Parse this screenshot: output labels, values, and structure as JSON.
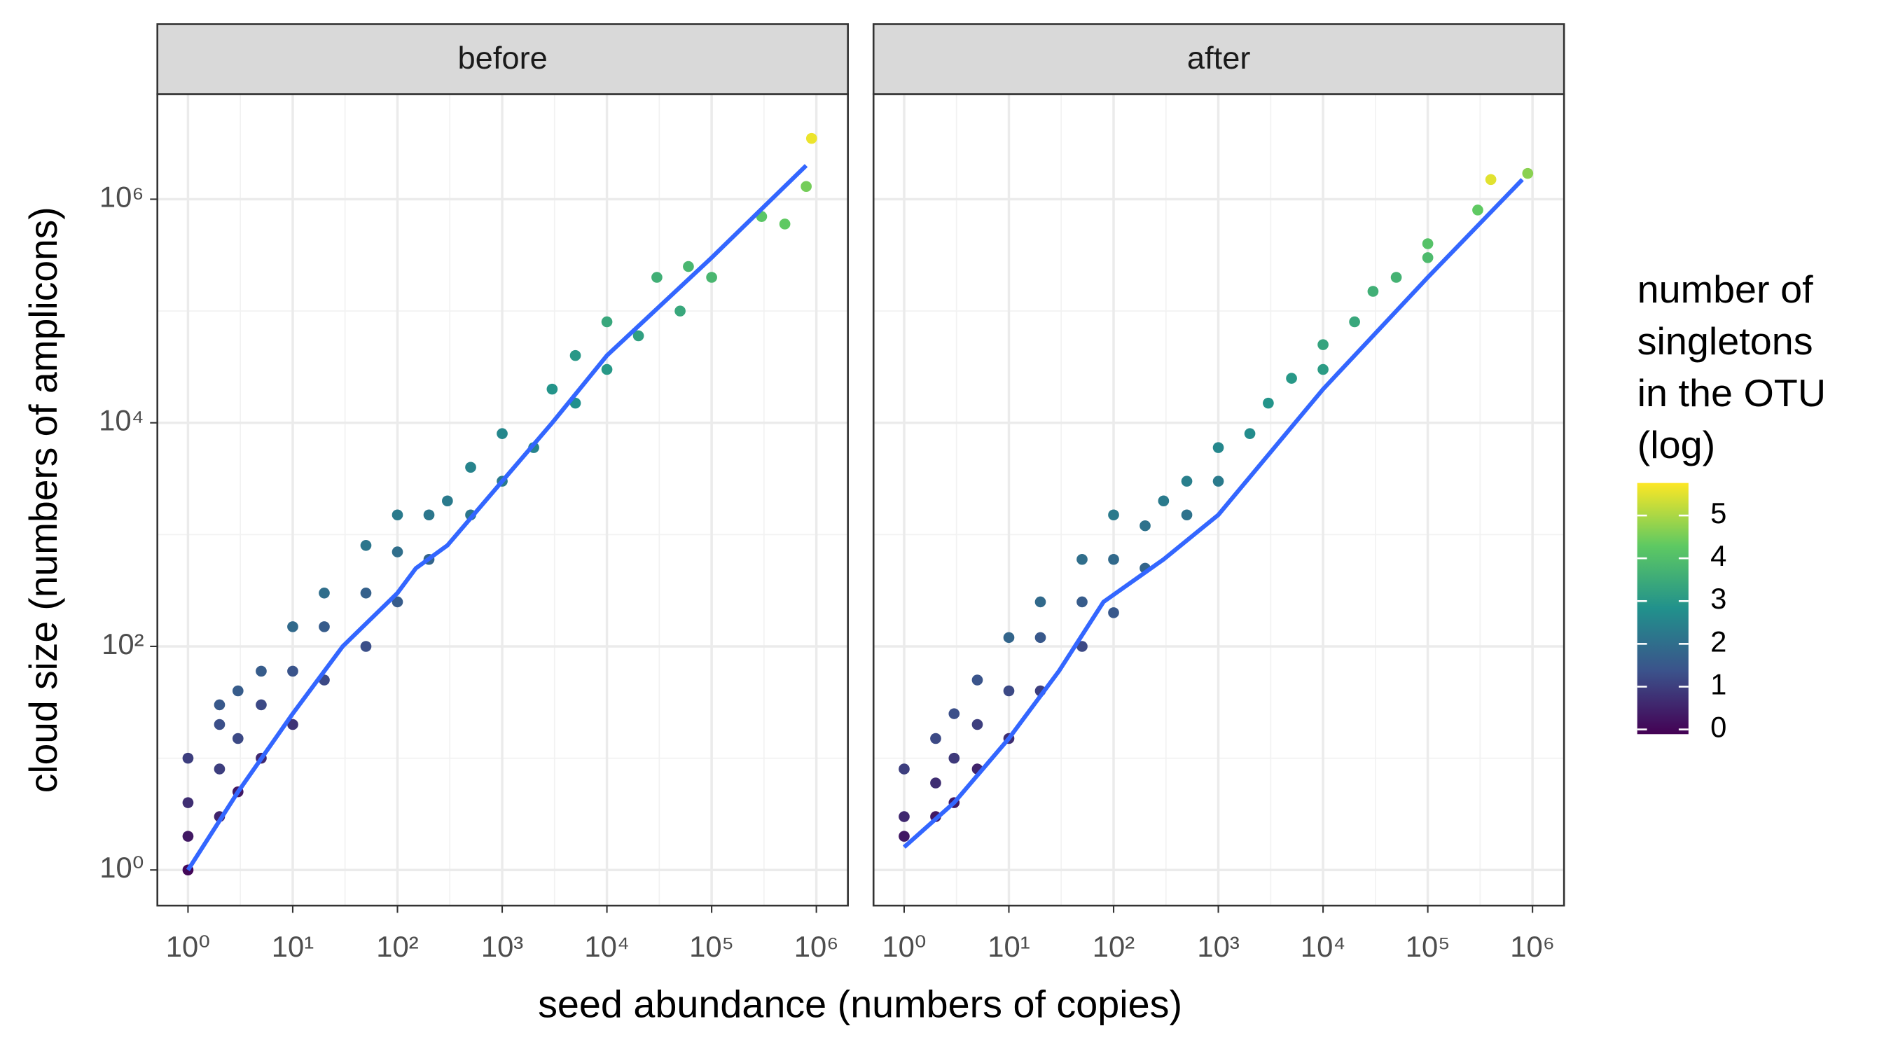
{
  "chart_data": [
    {
      "type": "scatter",
      "title": "before",
      "x": [
        1,
        1,
        1,
        1,
        2,
        2,
        2,
        2,
        3,
        3,
        3,
        5,
        5,
        5,
        10,
        10,
        10,
        20,
        20,
        20,
        50,
        50,
        50,
        100,
        100,
        100,
        200,
        200,
        300,
        500,
        500,
        1000,
        1000,
        2000,
        3000,
        5000,
        5000,
        10000,
        10000,
        20000,
        30000,
        50000,
        60000,
        100000,
        300000,
        500000,
        800000,
        900000
      ],
      "y": [
        1,
        2,
        4,
        10,
        3,
        8,
        20,
        30,
        5,
        15,
        40,
        10,
        30,
        60,
        20,
        60,
        150,
        50,
        150,
        300,
        100,
        300,
        800,
        250,
        700,
        1500,
        600,
        1500,
        2000,
        1500,
        4000,
        3000,
        8000,
        6000,
        20000,
        15000,
        40000,
        30000,
        80000,
        60000,
        200000,
        100000,
        250000,
        200000,
        700000,
        600000,
        1300000,
        3500000
      ],
      "color_values": [
        0,
        0.3,
        0.7,
        1,
        0.5,
        1,
        1.3,
        1.5,
        0.3,
        1.2,
        1.6,
        0.6,
        1.2,
        1.6,
        0.8,
        1.4,
        1.9,
        1.2,
        1.6,
        2,
        1.3,
        1.7,
        2.2,
        1.6,
        2,
        2.3,
        1.8,
        2.2,
        2.3,
        2.2,
        2.5,
        2.3,
        2.6,
        2.5,
        2.9,
        2.8,
        3,
        3,
        3.4,
        3.2,
        3.6,
        3.4,
        3.8,
        3.8,
        4.2,
        4.3,
        4.5,
        5.6
      ],
      "fit": {
        "color": "#3366ff",
        "x": [
          1,
          3,
          10,
          30,
          100,
          150,
          300,
          1000,
          3000,
          10000,
          100000,
          800000
        ],
        "y": [
          1,
          5,
          25,
          100,
          300,
          500,
          800,
          3000,
          10000,
          40000,
          300000,
          2000000
        ]
      },
      "xlim": [
        0.51,
        2000000
      ],
      "xticks": [
        {
          "value": 1,
          "label": "10⁰"
        },
        {
          "value": 10,
          "label": "10¹"
        },
        {
          "value": 100,
          "label": "10²"
        },
        {
          "value": 1000,
          "label": "10³"
        },
        {
          "value": 10000,
          "label": "10⁴"
        },
        {
          "value": 100000,
          "label": "10⁵"
        },
        {
          "value": 1000000,
          "label": "10⁶"
        }
      ],
      "minor_xticks": [
        3.16,
        31.6,
        316,
        3162,
        31623,
        316228
      ],
      "log_x": true
    },
    {
      "type": "scatter",
      "title": "after",
      "x": [
        1,
        1,
        1,
        2,
        2,
        2,
        3,
        3,
        3,
        5,
        5,
        5,
        10,
        10,
        10,
        20,
        20,
        20,
        50,
        50,
        50,
        100,
        100,
        100,
        200,
        200,
        300,
        500,
        500,
        1000,
        1000,
        2000,
        3000,
        5000,
        10000,
        10000,
        20000,
        30000,
        50000,
        100000,
        100000,
        300000,
        400000,
        900000
      ],
      "y": [
        2,
        3,
        8,
        3,
        6,
        15,
        4,
        10,
        25,
        8,
        20,
        50,
        15,
        40,
        120,
        40,
        120,
        250,
        100,
        250,
        600,
        200,
        600,
        1500,
        500,
        1200,
        2000,
        1500,
        3000,
        3000,
        6000,
        8000,
        15000,
        25000,
        30000,
        50000,
        80000,
        150000,
        200000,
        300000,
        400000,
        800000,
        1500000,
        1700000
      ],
      "color_values": [
        0.3,
        0.6,
        1,
        0.3,
        0.7,
        1.2,
        0.3,
        0.9,
        1.3,
        0.5,
        1,
        1.4,
        0.7,
        1.2,
        1.8,
        1,
        1.5,
        1.9,
        1.2,
        1.6,
        2,
        1.5,
        1.9,
        2.3,
        1.8,
        2.1,
        2.3,
        2.1,
        2.4,
        2.3,
        2.6,
        2.7,
        2.9,
        3,
        3.1,
        3.3,
        3.4,
        3.6,
        3.7,
        3.9,
        4.1,
        4.3,
        5.5,
        4.7
      ],
      "fit": {
        "color": "#3366ff",
        "x": [
          1,
          3,
          10,
          30,
          80,
          300,
          1000,
          10000,
          100000,
          800000
        ],
        "y": [
          1.6,
          4,
          15,
          60,
          250,
          600,
          1500,
          20000,
          200000,
          1500000
        ]
      },
      "xlim": [
        0.51,
        2000000
      ],
      "xticks": [
        {
          "value": 1,
          "label": "10⁰"
        },
        {
          "value": 10,
          "label": "10¹"
        },
        {
          "value": 100,
          "label": "10²"
        },
        {
          "value": 1000,
          "label": "10³"
        },
        {
          "value": 10000,
          "label": "10⁴"
        },
        {
          "value": 100000,
          "label": "10⁵"
        },
        {
          "value": 1000000,
          "label": "10⁶"
        }
      ],
      "minor_xticks": [
        3.16,
        31.6,
        316,
        3162,
        31623,
        316228
      ],
      "log_x": true
    }
  ],
  "x_axis_label": "seed abundance (numbers of copies)",
  "y_axis": {
    "label": "cloud size (numbers of amplicons)",
    "lim": [
      0.48,
      8700000
    ],
    "log": true,
    "ticks": [
      {
        "value": 1,
        "label": "10⁰"
      },
      {
        "value": 100,
        "label": "10²"
      },
      {
        "value": 10000,
        "label": "10⁴"
      },
      {
        "value": 1000000,
        "label": "10⁶"
      }
    ],
    "minor_ticks": [
      10,
      1000,
      100000
    ]
  },
  "colorbar": {
    "title_lines": [
      "number of",
      "singletons",
      "in the OTU",
      "(log)"
    ],
    "lim": [
      -0.11,
      5.76
    ],
    "ticks": [
      0,
      1,
      2,
      3,
      4,
      5
    ],
    "colormap": [
      "#440154",
      "#3b528b",
      "#21918c",
      "#5ec962",
      "#fde725"
    ]
  }
}
